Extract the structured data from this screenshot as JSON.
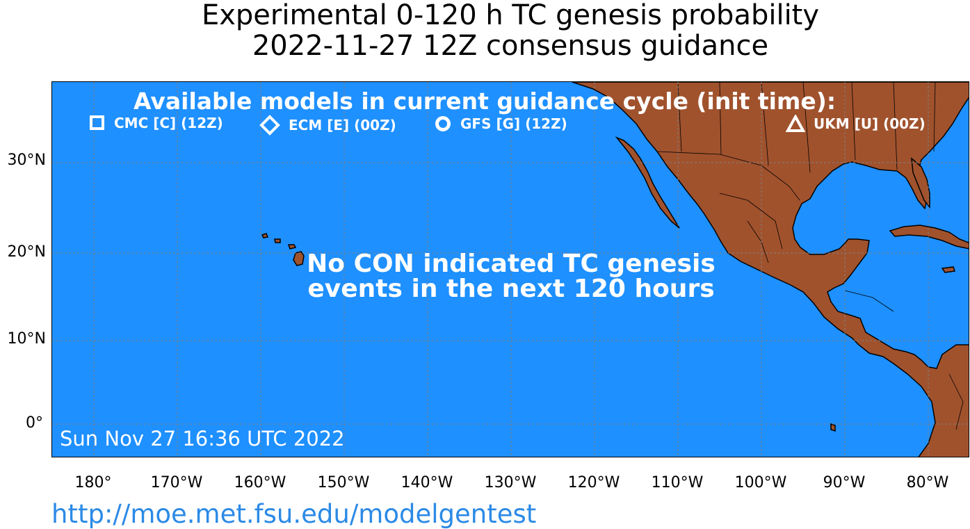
{
  "title_line1": "Experimental 0-120 h TC genesis probability",
  "title_line2": "2022-11-27 12Z consensus guidance",
  "available_models_title": "Available models in current guidance cycle (init time):",
  "legend": [
    {
      "marker": "square-icon",
      "label": "CMC [C] (12Z)"
    },
    {
      "marker": "diamond-icon",
      "label": "ECM [E] (00Z)"
    },
    {
      "marker": "circle-icon",
      "label": "GFS [G] (12Z)"
    },
    {
      "marker": "triangle-icon",
      "label": "UKM [U] (00Z)"
    }
  ],
  "message_line1": "No CON indicated TC genesis",
  "message_line2": "events in the next 120 hours",
  "timestamp": "Sun Nov 27 16:36 UTC 2022",
  "url": "http://moe.met.fsu.edu/modelgentest",
  "lat_labels": [
    "30°N",
    "20°N",
    "10°N",
    "0°"
  ],
  "lon_labels": [
    "180°",
    "170°W",
    "160°W",
    "150°W",
    "140°W",
    "130°W",
    "120°W",
    "110°W",
    "100°W",
    "90°W",
    "80°W"
  ],
  "colors": {
    "ocean": "#1e90ff",
    "land": "#a0522d",
    "grid": "#808080",
    "url": "#2b8ae6"
  }
}
